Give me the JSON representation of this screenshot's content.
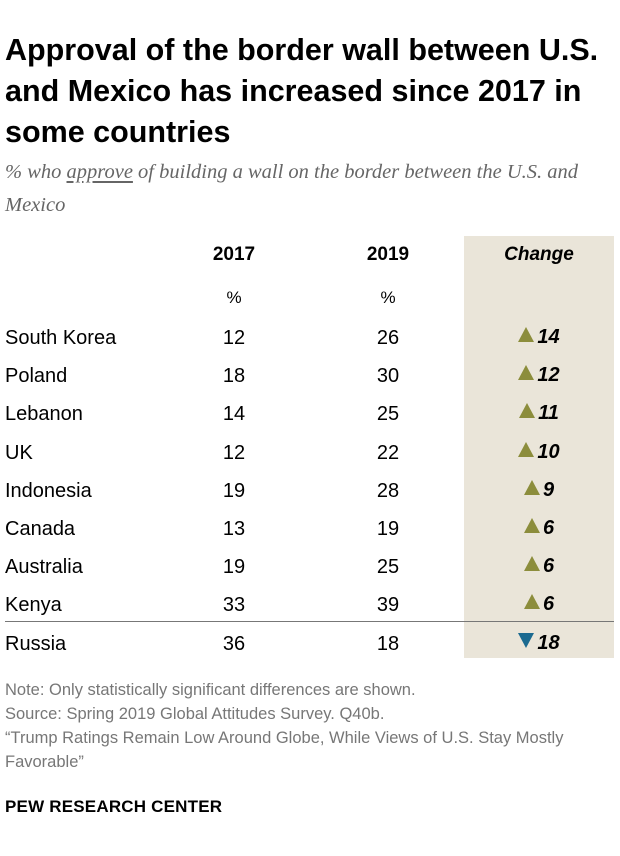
{
  "title": "Approval of the border wall between U.S. and Mexico has increased since 2017 in some countries",
  "subtitle": {
    "before": "% who ",
    "underlined": "approve",
    "after": " of building a wall on the border between the U.S. and Mexico"
  },
  "colors": {
    "change_background": "#eae5d9",
    "increase_arrow": "#8c8d3c",
    "decrease_arrow": "#1b6a90"
  },
  "chart_data": {
    "type": "table",
    "columns": [
      "2017",
      "2019",
      "Change"
    ],
    "unit_labels": [
      "%",
      "%"
    ],
    "rows": [
      {
        "country": "South Korea",
        "y2017": 12,
        "y2019": 26,
        "change": "14",
        "direction": "up"
      },
      {
        "country": "Poland",
        "y2017": 18,
        "y2019": 30,
        "change": "12",
        "direction": "up"
      },
      {
        "country": "Lebanon",
        "y2017": 14,
        "y2019": 25,
        "change": "11",
        "direction": "up"
      },
      {
        "country": "UK",
        "y2017": 12,
        "y2019": 22,
        "change": "10",
        "direction": "up"
      },
      {
        "country": "Indonesia",
        "y2017": 19,
        "y2019": 28,
        "change": "9",
        "direction": "up"
      },
      {
        "country": "Canada",
        "y2017": 13,
        "y2019": 19,
        "change": "6",
        "direction": "up"
      },
      {
        "country": "Australia",
        "y2017": 19,
        "y2019": 25,
        "change": "6",
        "direction": "up"
      },
      {
        "country": "Kenya",
        "y2017": 33,
        "y2019": 39,
        "change": "6",
        "direction": "up"
      },
      {
        "country": "Russia",
        "y2017": 36,
        "y2019": 18,
        "change": "18",
        "direction": "down"
      }
    ]
  },
  "notes": {
    "note": "Note: Only statistically significant differences are shown.",
    "source": "Source: Spring 2019 Global Attitudes Survey. Q40b.",
    "report": "“Trump Ratings Remain Low Around Globe, While Views of U.S. Stay Mostly Favorable”"
  },
  "brand": "PEW RESEARCH CENTER"
}
